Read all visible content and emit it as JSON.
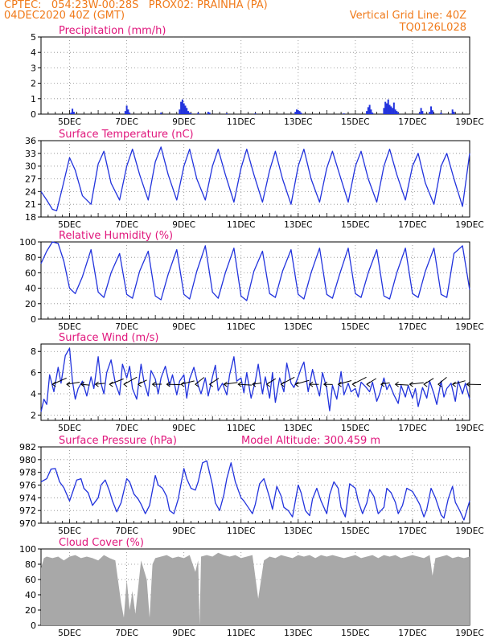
{
  "header": {
    "line1": "CPTEC:   054:23W-00:28S   PROX02: PRAINHA (PA)",
    "line2": "04DEC2020 40Z (GMT)",
    "grid_note": "Vertical Grid Line: 40Z",
    "model_code": "TQ0126L028",
    "model_altitude": "Model Altitude: 300.459 m"
  },
  "colors": {
    "header": "#f07a1a",
    "title": "#e0167c",
    "line": "#2233dd",
    "cloud": "#a8a8a8",
    "wind_arrow": "#000000"
  },
  "x_ticks": [
    "5DEC",
    "7DEC",
    "9DEC",
    "11DEC",
    "13DEC",
    "15DEC",
    "17DEC",
    "19DEC"
  ],
  "chart_data": [
    {
      "id": "precip",
      "type": "bar",
      "title": "Precipitation (mm/h)",
      "x_range_days": [
        4.0,
        19.0
      ],
      "ylim": [
        0,
        5
      ],
      "yticks": [
        0,
        1,
        2,
        3,
        4,
        5
      ],
      "grid": true,
      "note": "values in mm/h; x in days of December 2020",
      "x": [
        5.05,
        5.1,
        5.15,
        6.95,
        7.0,
        7.05,
        7.1,
        8.2,
        8.85,
        8.9,
        8.95,
        9.0,
        9.05,
        9.1,
        9.15,
        9.2,
        9.25,
        9.5,
        9.85,
        9.9,
        10.5,
        11.5,
        12.9,
        12.95,
        13.0,
        13.05,
        13.1,
        14.6,
        15.4,
        15.45,
        15.5,
        15.55,
        15.6,
        16.0,
        16.05,
        16.1,
        16.15,
        16.2,
        16.25,
        16.3,
        16.35,
        16.4,
        16.45,
        16.5,
        17.25,
        17.3,
        17.35,
        17.6,
        17.65,
        17.7,
        18.0,
        18.4,
        18.45
      ],
      "values": [
        0.1,
        0.35,
        0.15,
        0.2,
        0.55,
        0.3,
        0.1,
        0.1,
        0.3,
        0.8,
        0.95,
        0.7,
        0.55,
        0.4,
        0.2,
        0.1,
        0.05,
        0.1,
        0.15,
        0.1,
        0.05,
        0.05,
        0.15,
        0.3,
        0.25,
        0.2,
        0.1,
        0.05,
        0.2,
        0.45,
        0.6,
        0.3,
        0.1,
        0.4,
        0.8,
        0.7,
        0.95,
        0.6,
        0.5,
        0.4,
        0.75,
        0.3,
        0.2,
        0.1,
        0.1,
        0.4,
        0.2,
        0.15,
        0.5,
        0.25,
        0.1,
        0.3,
        0.15
      ]
    },
    {
      "id": "temp",
      "type": "line",
      "title": "Surface Temperature (nC)",
      "x_range_days": [
        4.0,
        19.0
      ],
      "ylim": [
        18,
        36
      ],
      "yticks": [
        18,
        21,
        24,
        27,
        30,
        33,
        36
      ],
      "grid": true,
      "x": [
        4.0,
        4.2,
        4.4,
        4.55,
        4.75,
        5.0,
        5.2,
        5.45,
        5.75,
        6.0,
        6.2,
        6.45,
        6.75,
        7.0,
        7.2,
        7.45,
        7.75,
        8.0,
        8.2,
        8.45,
        8.75,
        9.0,
        9.2,
        9.45,
        9.75,
        10.0,
        10.2,
        10.45,
        10.75,
        11.0,
        11.2,
        11.45,
        11.75,
        12.0,
        12.2,
        12.45,
        12.75,
        13.0,
        13.2,
        13.45,
        13.75,
        14.0,
        14.2,
        14.45,
        14.75,
        15.0,
        15.2,
        15.45,
        15.75,
        16.0,
        16.2,
        16.45,
        16.75,
        17.0,
        17.2,
        17.45,
        17.75,
        18.0,
        18.2,
        18.45,
        18.75,
        19.0
      ],
      "values": [
        24,
        22,
        19.8,
        19.5,
        25,
        32,
        29,
        23,
        21,
        30.5,
        33.5,
        26,
        22,
        30,
        34,
        28,
        22,
        31,
        34.5,
        28,
        22,
        30,
        34,
        27,
        22,
        30,
        34,
        28,
        21.5,
        29.5,
        34,
        28,
        21.5,
        29,
        33.5,
        27,
        21,
        30,
        34,
        27,
        21.5,
        29.5,
        33.5,
        28,
        21.5,
        30,
        33.5,
        27,
        21.5,
        30,
        34,
        28,
        22,
        30,
        33,
        26,
        21,
        30,
        33,
        27,
        20.5,
        33
      ]
    },
    {
      "id": "rh",
      "type": "line",
      "title": "Relative Humidity (%)",
      "x_range_days": [
        4.0,
        19.0
      ],
      "ylim": [
        0,
        100
      ],
      "yticks": [
        0,
        20,
        40,
        60,
        80,
        100
      ],
      "grid": true,
      "x": [
        4.0,
        4.2,
        4.4,
        4.6,
        4.8,
        5.0,
        5.2,
        5.45,
        5.75,
        6.0,
        6.2,
        6.45,
        6.75,
        7.0,
        7.2,
        7.45,
        7.75,
        8.0,
        8.2,
        8.45,
        8.75,
        9.0,
        9.2,
        9.45,
        9.75,
        10.0,
        10.2,
        10.45,
        10.75,
        11.0,
        11.2,
        11.45,
        11.75,
        12.0,
        12.2,
        12.45,
        12.75,
        13.0,
        13.2,
        13.45,
        13.75,
        14.0,
        14.2,
        14.45,
        14.75,
        15.0,
        15.2,
        15.45,
        15.75,
        16.0,
        16.2,
        16.45,
        16.75,
        17.0,
        17.2,
        17.45,
        17.75,
        18.0,
        18.2,
        18.45,
        18.75,
        19.0
      ],
      "values": [
        72,
        88,
        100,
        98,
        75,
        40,
        33,
        55,
        90,
        35,
        28,
        60,
        85,
        32,
        27,
        62,
        88,
        30,
        25,
        58,
        90,
        32,
        26,
        62,
        95,
        35,
        27,
        60,
        92,
        30,
        24,
        62,
        88,
        33,
        28,
        62,
        90,
        32,
        26,
        60,
        92,
        32,
        27,
        58,
        92,
        33,
        28,
        60,
        90,
        30,
        26,
        60,
        92,
        33,
        28,
        62,
        92,
        32,
        28,
        85,
        95,
        38
      ]
    },
    {
      "id": "wind",
      "type": "line",
      "title": "Surface Wind (m/s)",
      "x_range_days": [
        4.0,
        19.0
      ],
      "ylim": [
        1.5,
        8.7
      ],
      "yticks": [
        2,
        4,
        6,
        8
      ],
      "grid": true,
      "note": "black segments mark wind direction along the 4.9 m/s level",
      "x": [
        4.0,
        4.1,
        4.2,
        4.3,
        4.45,
        4.6,
        4.7,
        4.85,
        5.0,
        5.1,
        5.2,
        5.3,
        5.45,
        5.6,
        5.75,
        5.85,
        6.0,
        6.1,
        6.2,
        6.3,
        6.45,
        6.6,
        6.75,
        6.85,
        7.0,
        7.1,
        7.2,
        7.35,
        7.5,
        7.6,
        7.75,
        7.85,
        8.0,
        8.1,
        8.2,
        8.35,
        8.5,
        8.6,
        8.75,
        8.85,
        9.0,
        9.1,
        9.2,
        9.35,
        9.5,
        9.6,
        9.75,
        9.85,
        10.0,
        10.1,
        10.2,
        10.35,
        10.5,
        10.6,
        10.75,
        10.85,
        11.0,
        11.1,
        11.2,
        11.35,
        11.5,
        11.6,
        11.75,
        11.85,
        12.0,
        12.1,
        12.2,
        12.35,
        12.5,
        12.6,
        12.75,
        12.85,
        13.0,
        13.1,
        13.2,
        13.35,
        13.5,
        13.6,
        13.75,
        13.85,
        14.0,
        14.1,
        14.2,
        14.35,
        14.5,
        14.6,
        14.75,
        14.85,
        15.0,
        15.1,
        15.2,
        15.35,
        15.5,
        15.6,
        15.75,
        15.85,
        16.0,
        16.1,
        16.2,
        16.35,
        16.5,
        16.6,
        16.75,
        16.85,
        17.0,
        17.1,
        17.2,
        17.35,
        17.5,
        17.6,
        17.75,
        17.85,
        18.0,
        18.1,
        18.2,
        18.35,
        18.5,
        18.6,
        18.75,
        18.85,
        19.0
      ],
      "values": [
        2.3,
        3.5,
        3.0,
        5.8,
        4.2,
        6.5,
        5.0,
        7.6,
        8.3,
        5.2,
        3.5,
        4.5,
        5.2,
        3.8,
        5.6,
        4.5,
        7.5,
        5.0,
        4.0,
        6.0,
        7.2,
        5.0,
        3.9,
        6.8,
        5.5,
        6.6,
        4.5,
        3.5,
        6.8,
        5.2,
        3.8,
        6.2,
        5.4,
        4.0,
        5.5,
        6.6,
        4.8,
        5.8,
        3.9,
        5.2,
        5.8,
        3.6,
        5.4,
        6.5,
        4.8,
        4.0,
        5.5,
        3.8,
        5.6,
        6.7,
        4.3,
        5.0,
        3.9,
        5.8,
        7.5,
        5.2,
        5.5,
        4.1,
        6.0,
        3.6,
        5.2,
        6.8,
        4.0,
        5.6,
        3.6,
        6.0,
        3.2,
        5.5,
        4.2,
        6.9,
        5.0,
        4.6,
        5.6,
        6.4,
        7.0,
        4.2,
        6.3,
        5.2,
        3.8,
        6.0,
        4.5,
        2.4,
        4.8,
        3.5,
        6.1,
        3.9,
        5.0,
        4.2,
        4.5,
        3.7,
        5.1,
        4.7,
        4.2,
        5.1,
        3.3,
        4.0,
        5.5,
        4.4,
        4.9,
        3.9,
        3.1,
        4.8,
        3.7,
        4.8,
        3.6,
        4.5,
        2.8,
        4.6,
        3.6,
        5.2,
        4.0,
        3.0,
        5.2,
        3.7,
        4.5,
        5.0,
        3.3,
        5.2,
        4.0,
        5.0,
        3.5
      ]
    },
    {
      "id": "pres",
      "type": "line",
      "title": "Surface Pressure (hPa)",
      "x_range_days": [
        4.0,
        19.0
      ],
      "ylim": [
        970,
        982
      ],
      "yticks": [
        970,
        972,
        974,
        976,
        978,
        980,
        982
      ],
      "grid": true,
      "x": [
        4.0,
        4.2,
        4.35,
        4.5,
        4.65,
        4.8,
        5.0,
        5.1,
        5.25,
        5.4,
        5.5,
        5.65,
        5.8,
        6.0,
        6.1,
        6.25,
        6.4,
        6.5,
        6.65,
        6.8,
        7.0,
        7.1,
        7.25,
        7.4,
        7.5,
        7.65,
        7.8,
        8.0,
        8.1,
        8.25,
        8.4,
        8.5,
        8.65,
        8.8,
        9.0,
        9.1,
        9.25,
        9.4,
        9.5,
        9.65,
        9.8,
        10.0,
        10.1,
        10.25,
        10.4,
        10.5,
        10.65,
        10.8,
        11.0,
        11.1,
        11.25,
        11.4,
        11.5,
        11.65,
        11.8,
        12.0,
        12.1,
        12.25,
        12.4,
        12.5,
        12.65,
        12.8,
        13.0,
        13.1,
        13.25,
        13.4,
        13.5,
        13.65,
        13.8,
        14.0,
        14.1,
        14.25,
        14.4,
        14.5,
        14.65,
        14.8,
        15.0,
        15.1,
        15.25,
        15.4,
        15.5,
        15.65,
        15.8,
        16.0,
        16.1,
        16.25,
        16.4,
        16.5,
        16.65,
        16.8,
        17.0,
        17.1,
        17.25,
        17.4,
        17.5,
        17.65,
        17.8,
        18.0,
        18.1,
        18.25,
        18.4,
        18.5,
        18.65,
        18.8,
        19.0
      ],
      "values": [
        976.5,
        977,
        978.5,
        978.6,
        976.5,
        975.6,
        973.5,
        974.8,
        976.8,
        977,
        975.5,
        974.8,
        972.8,
        974.0,
        976.0,
        976.8,
        975.0,
        973.5,
        971.8,
        973.2,
        977.0,
        976.5,
        974.6,
        973.8,
        973.0,
        971.5,
        972.8,
        977.5,
        976.0,
        975.5,
        974.2,
        972.0,
        971.5,
        973.8,
        978.6,
        977.0,
        975.5,
        975.2,
        976.5,
        979.5,
        979.8,
        976.0,
        973.2,
        972.0,
        974.5,
        977.0,
        979.5,
        976.5,
        974.0,
        973.5,
        972.5,
        971.5,
        973.0,
        976.2,
        977.0,
        974.0,
        972.2,
        975.8,
        974.3,
        972.5,
        972.0,
        971.0,
        976.0,
        974.8,
        972.0,
        971.2,
        973.8,
        975.5,
        973.5,
        971.5,
        974.5,
        976.5,
        975.5,
        972.5,
        971.0,
        976.2,
        975.5,
        973.5,
        971.5,
        973.2,
        975.3,
        974.2,
        971.5,
        972.5,
        975.5,
        974.8,
        973.3,
        971.5,
        972.8,
        975.5,
        975.0,
        974.2,
        973.0,
        971.0,
        972.2,
        975.5,
        974.0,
        971.3,
        970.8,
        973.8,
        975.8,
        973.3,
        972.0,
        970.5,
        973.5
      ]
    },
    {
      "id": "cloud",
      "type": "area",
      "title": "Cloud Cover (%)",
      "x_range_days": [
        4.0,
        19.0
      ],
      "ylim": [
        0,
        100
      ],
      "yticks": [
        0,
        20,
        40,
        60,
        80,
        100
      ],
      "grid": true,
      "x": [
        4.0,
        4.1,
        4.2,
        4.4,
        4.6,
        4.8,
        5.0,
        5.2,
        5.4,
        5.6,
        5.8,
        6.0,
        6.2,
        6.4,
        6.6,
        6.8,
        6.9,
        7.0,
        7.1,
        7.2,
        7.3,
        7.5,
        7.7,
        7.8,
        7.9,
        8.0,
        8.2,
        8.4,
        8.6,
        8.8,
        9.0,
        9.2,
        9.4,
        9.5,
        9.55,
        9.6,
        9.8,
        10.0,
        10.2,
        10.4,
        10.6,
        10.8,
        11.0,
        11.2,
        11.4,
        11.6,
        11.8,
        12.0,
        12.2,
        12.4,
        12.6,
        12.8,
        13.0,
        13.2,
        13.4,
        13.6,
        13.8,
        14.0,
        14.2,
        14.4,
        14.6,
        14.8,
        15.0,
        15.2,
        15.4,
        15.6,
        15.8,
        16.0,
        16.2,
        16.4,
        16.6,
        16.8,
        17.0,
        17.2,
        17.4,
        17.6,
        17.7,
        17.8,
        18.0,
        18.2,
        18.4,
        18.6,
        18.8,
        19.0
      ],
      "values": [
        75,
        88,
        90,
        88,
        90,
        85,
        90,
        92,
        88,
        90,
        88,
        85,
        92,
        88,
        85,
        30,
        10,
        60,
        20,
        45,
        15,
        85,
        60,
        10,
        80,
        88,
        90,
        92,
        88,
        90,
        88,
        92,
        70,
        85,
        0,
        90,
        92,
        90,
        95,
        92,
        90,
        92,
        88,
        90,
        92,
        35,
        85,
        90,
        88,
        92,
        90,
        88,
        92,
        90,
        92,
        88,
        92,
        90,
        92,
        90,
        88,
        90,
        92,
        88,
        90,
        92,
        88,
        92,
        90,
        92,
        88,
        90,
        92,
        90,
        88,
        92,
        65,
        88,
        90,
        92,
        88,
        90,
        88,
        90
      ]
    }
  ]
}
